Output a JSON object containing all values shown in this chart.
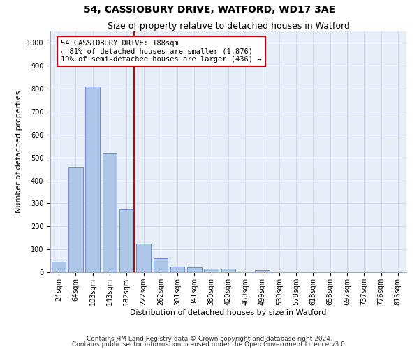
{
  "title": "54, CASSIOBURY DRIVE, WATFORD, WD17 3AE",
  "subtitle": "Size of property relative to detached houses in Watford",
  "xlabel": "Distribution of detached houses by size in Watford",
  "ylabel": "Number of detached properties",
  "footnote1": "Contains HM Land Registry data © Crown copyright and database right 2024.",
  "footnote2": "Contains public sector information licensed under the Open Government Licence v3.0.",
  "categories": [
    "24sqm",
    "64sqm",
    "103sqm",
    "143sqm",
    "182sqm",
    "222sqm",
    "262sqm",
    "301sqm",
    "341sqm",
    "380sqm",
    "420sqm",
    "460sqm",
    "499sqm",
    "539sqm",
    "578sqm",
    "618sqm",
    "658sqm",
    "697sqm",
    "737sqm",
    "776sqm",
    "816sqm"
  ],
  "values": [
    45,
    460,
    810,
    520,
    275,
    125,
    60,
    25,
    20,
    15,
    15,
    0,
    10,
    0,
    0,
    0,
    0,
    0,
    0,
    0,
    0
  ],
  "bar_color": "#aec6e8",
  "bar_edge_color": "#4472c4",
  "property_bin_index": 4,
  "red_line_color": "#cc0000",
  "annotation_line1": "54 CASSIOBURY DRIVE: 188sqm",
  "annotation_line2": "← 81% of detached houses are smaller (1,876)",
  "annotation_line3": "19% of semi-detached houses are larger (436) →",
  "annotation_box_color": "#ffffff",
  "annotation_box_edge_color": "#cc0000",
  "ylim": [
    0,
    1050
  ],
  "yticks": [
    0,
    100,
    200,
    300,
    400,
    500,
    600,
    700,
    800,
    900,
    1000
  ],
  "background_color": "#ffffff",
  "axes_background": "#e8eef8",
  "grid_color": "#c8d4e8",
  "title_fontsize": 10,
  "subtitle_fontsize": 9,
  "axis_label_fontsize": 8,
  "tick_fontsize": 7,
  "footnote_fontsize": 6.5,
  "annotation_fontsize": 7.5
}
